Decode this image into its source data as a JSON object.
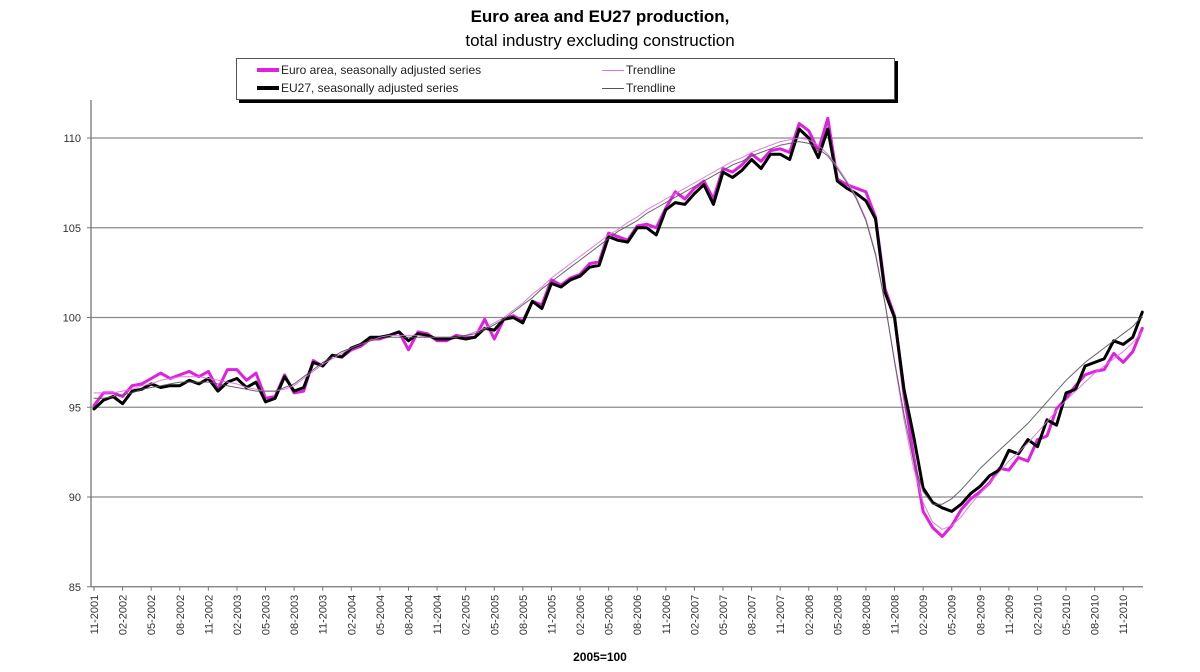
{
  "chart_data": {
    "type": "line",
    "title": "Euro area and EU27 production,",
    "subtitle": "total industry excluding construction",
    "xlabel": "2005=100",
    "ylabel": "",
    "ylim": [
      85,
      112
    ],
    "yticks": [
      85,
      90,
      95,
      100,
      105,
      110
    ],
    "grid": true,
    "legend_position": "top",
    "x_tick_labels": [
      "11-2001",
      "02-2002",
      "05-2002",
      "08-2002",
      "11-2002",
      "02-2003",
      "05-2003",
      "08-2003",
      "11-2003",
      "02-2004",
      "05-2004",
      "08-2004",
      "11-2004",
      "02-2005",
      "05-2005",
      "08-2005",
      "11-2005",
      "02-2006",
      "05-2006",
      "08-2006",
      "11-2006",
      "02-2007",
      "05-2007",
      "08-2007",
      "11-2007",
      "02-2008",
      "05-2008",
      "08-2008",
      "11-2008",
      "02-2009",
      "05-2009",
      "08-2009",
      "11-2009",
      "02-2010",
      "05-2010",
      "08-2010",
      "11-2010"
    ],
    "x_start": "11-2001",
    "x_frequency": "monthly",
    "series": [
      {
        "name": "Euro area, seasonally adjusted series",
        "color": "#e020e0",
        "width": 3,
        "values": [
          95.1,
          95.8,
          95.8,
          95.6,
          96.2,
          96.3,
          96.6,
          96.9,
          96.6,
          96.8,
          97.0,
          96.7,
          97.0,
          96.0,
          97.1,
          97.1,
          96.5,
          96.9,
          95.5,
          95.6,
          96.8,
          95.8,
          95.9,
          97.6,
          97.3,
          97.9,
          97.8,
          98.2,
          98.4,
          98.8,
          98.8,
          99.0,
          99.2,
          98.2,
          99.2,
          99.1,
          98.7,
          98.7,
          99.0,
          98.9,
          98.9,
          99.9,
          98.8,
          99.9,
          100.1,
          99.8,
          100.9,
          100.7,
          102.1,
          101.8,
          102.2,
          102.4,
          103.0,
          103.1,
          104.7,
          104.5,
          104.3,
          105.1,
          105.2,
          105.0,
          106.1,
          107.0,
          106.6,
          107.2,
          107.6,
          106.6,
          108.3,
          108.1,
          108.5,
          109.1,
          108.7,
          109.3,
          109.4,
          109.2,
          110.8,
          110.4,
          109.3,
          111.1,
          107.7,
          107.4,
          107.2,
          107.0,
          105.6,
          101.6,
          100.1,
          95.7,
          92.3,
          89.2,
          88.3,
          87.8,
          88.4,
          89.3,
          89.9,
          90.3,
          90.8,
          91.6,
          91.5,
          92.2,
          92.0,
          93.2,
          93.4,
          94.9,
          95.5,
          96.2,
          96.8,
          97.0,
          97.1,
          98.0,
          97.5,
          98.1,
          99.4
        ]
      },
      {
        "name": "Trendline (Euro area)",
        "color": "#e070e0",
        "width": 1,
        "values": [
          95.8,
          95.8,
          95.8,
          95.9,
          96.0,
          96.2,
          96.3,
          96.5,
          96.6,
          96.7,
          96.7,
          96.7,
          96.6,
          96.5,
          96.4,
          96.3,
          96.1,
          96.0,
          95.9,
          95.9,
          96.0,
          96.2,
          96.6,
          97.0,
          97.4,
          97.7,
          98.0,
          98.3,
          98.5,
          98.7,
          98.9,
          99.0,
          99.0,
          99.0,
          99.0,
          98.9,
          98.9,
          98.9,
          98.9,
          99.0,
          99.2,
          99.4,
          99.7,
          100.0,
          100.4,
          100.8,
          101.3,
          101.7,
          102.2,
          102.6,
          103.0,
          103.4,
          103.8,
          104.2,
          104.6,
          104.9,
          105.3,
          105.6,
          106.0,
          106.3,
          106.6,
          106.9,
          107.2,
          107.5,
          107.8,
          108.1,
          108.4,
          108.7,
          108.9,
          109.2,
          109.4,
          109.6,
          109.8,
          109.9,
          110.0,
          109.9,
          109.6,
          109.1,
          108.4,
          107.6,
          106.7,
          105.5,
          103.6,
          100.8,
          97.5,
          94.3,
          91.6,
          89.7,
          88.6,
          88.2,
          88.4,
          88.9,
          89.6,
          90.2,
          90.8,
          91.4,
          92.0,
          92.5,
          93.0,
          93.6,
          94.2,
          94.8,
          95.4,
          95.9,
          96.4,
          96.9,
          97.3,
          97.7,
          98.1,
          98.6,
          99.2
        ]
      },
      {
        "name": "EU27, seasonally adjusted series",
        "color": "#000000",
        "width": 3,
        "values": [
          94.9,
          95.4,
          95.6,
          95.2,
          95.9,
          96.0,
          96.3,
          96.1,
          96.2,
          96.2,
          96.5,
          96.3,
          96.6,
          95.9,
          96.4,
          96.6,
          96.1,
          96.4,
          95.3,
          95.5,
          96.7,
          95.9,
          96.1,
          97.5,
          97.3,
          97.9,
          97.8,
          98.3,
          98.5,
          98.9,
          98.9,
          99.0,
          99.2,
          98.7,
          99.1,
          99.0,
          98.8,
          98.8,
          98.9,
          98.8,
          98.9,
          99.4,
          99.3,
          99.9,
          100.0,
          99.7,
          100.9,
          100.5,
          101.9,
          101.7,
          102.1,
          102.3,
          102.8,
          102.9,
          104.5,
          104.3,
          104.2,
          105.0,
          105.0,
          104.6,
          106.0,
          106.4,
          106.3,
          106.9,
          107.4,
          106.3,
          108.1,
          107.8,
          108.2,
          108.8,
          108.3,
          109.1,
          109.1,
          108.8,
          110.5,
          110.0,
          108.9,
          110.5,
          107.6,
          107.2,
          106.9,
          106.5,
          105.5,
          101.4,
          100.0,
          96.0,
          93.4,
          90.5,
          89.7,
          89.4,
          89.2,
          89.6,
          90.2,
          90.6,
          91.2,
          91.5,
          92.6,
          92.4,
          93.2,
          92.8,
          94.3,
          94.0,
          95.8,
          96.0,
          97.3,
          97.5,
          97.7,
          98.7,
          98.5,
          98.9,
          100.3
        ]
      },
      {
        "name": "Trendline (EU27)",
        "color": "#555555",
        "width": 1,
        "values": [
          95.5,
          95.5,
          95.6,
          95.7,
          95.8,
          96.0,
          96.1,
          96.2,
          96.3,
          96.4,
          96.4,
          96.4,
          96.4,
          96.3,
          96.2,
          96.1,
          96.0,
          95.9,
          95.9,
          95.9,
          96.1,
          96.3,
          96.7,
          97.1,
          97.5,
          97.8,
          98.1,
          98.3,
          98.5,
          98.7,
          98.8,
          98.9,
          98.9,
          98.9,
          98.9,
          98.9,
          98.9,
          98.9,
          98.9,
          99.0,
          99.1,
          99.3,
          99.6,
          99.9,
          100.3,
          100.7,
          101.1,
          101.6,
          102.0,
          102.4,
          102.8,
          103.2,
          103.6,
          104.0,
          104.4,
          104.8,
          105.1,
          105.4,
          105.8,
          106.1,
          106.4,
          106.7,
          107.0,
          107.3,
          107.6,
          107.9,
          108.2,
          108.5,
          108.7,
          109.0,
          109.2,
          109.4,
          109.6,
          109.7,
          109.8,
          109.7,
          109.4,
          109.0,
          108.3,
          107.5,
          106.6,
          105.4,
          103.5,
          100.8,
          97.6,
          94.6,
          92.0,
          90.3,
          89.6,
          89.6,
          89.9,
          90.4,
          91.0,
          91.6,
          92.1,
          92.6,
          93.1,
          93.6,
          94.1,
          94.7,
          95.3,
          95.9,
          96.5,
          97.0,
          97.5,
          97.9,
          98.3,
          98.7,
          99.1,
          99.5,
          100.1
        ]
      }
    ]
  },
  "legend": {
    "items": [
      {
        "label": "Euro area, seasonally adjusted series",
        "color": "#e020e0"
      },
      {
        "label": "Trendline",
        "color": "#e070e0"
      },
      {
        "label": "EU27, seasonally adjusted series",
        "color": "#000000"
      },
      {
        "label": "Trendline",
        "color": "#555555"
      }
    ]
  }
}
